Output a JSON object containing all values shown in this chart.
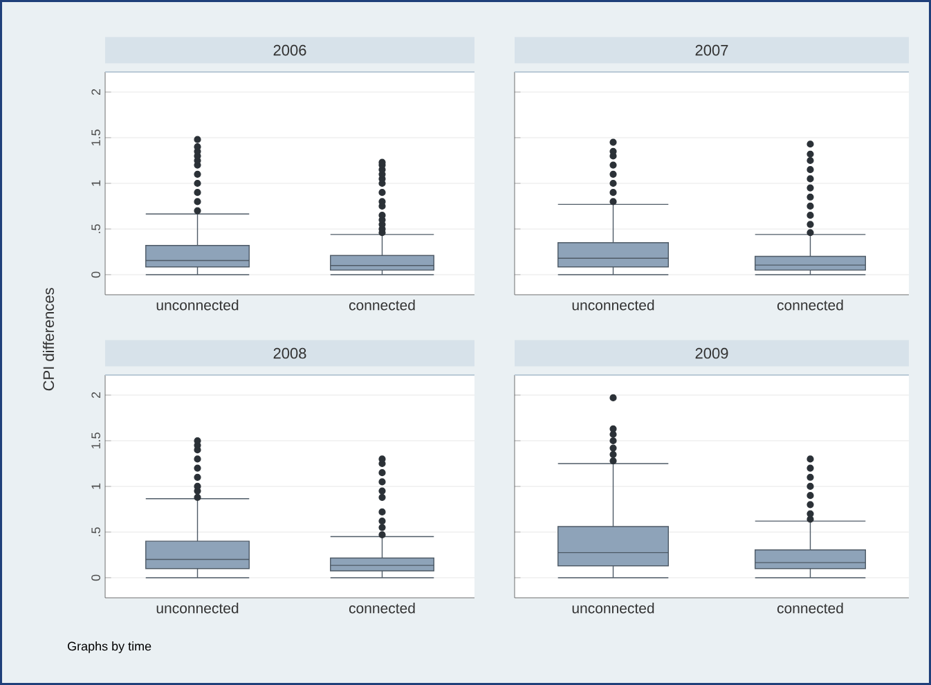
{
  "chart_data": [
    {
      "type": "box",
      "title": "2006",
      "ylabel": "CPI differences",
      "categories": [
        "unconnected",
        "connected"
      ],
      "ylim": [
        -0.22,
        2.22
      ],
      "yticks": [
        0,
        {
          "value": 0.5,
          "label": ".5"
        },
        1,
        1.5,
        2
      ],
      "grid": "y",
      "series": [
        {
          "color": "#8ea3b9",
          "boxes": [
            {
              "low": 0,
              "q1": 0.085,
              "median": 0.155,
              "q3": 0.32,
              "high": 0.665,
              "outliers": [
                0.7,
                0.8,
                0.9,
                1.0,
                1.1,
                1.2,
                1.25,
                1.3,
                1.35,
                1.4,
                1.48
              ]
            },
            {
              "low": 0,
              "q1": 0.05,
              "median": 0.1,
              "q3": 0.21,
              "high": 0.44,
              "outliers": [
                0.46,
                0.5,
                0.55,
                0.6,
                0.65,
                0.75,
                0.8,
                0.9,
                1.0,
                1.05,
                1.1,
                1.15,
                1.2,
                1.23
              ]
            }
          ]
        }
      ]
    },
    {
      "type": "box",
      "title": "2007",
      "categories": [
        "unconnected",
        "connected"
      ],
      "ylim": [
        -0.22,
        2.22
      ],
      "yticks": [
        0,
        0.5,
        1,
        1.5,
        2
      ],
      "grid": "y",
      "tick_labels": "x",
      "series": [
        {
          "color": "#8ea3b9",
          "boxes": [
            {
              "low": 0,
              "q1": 0.085,
              "median": 0.18,
              "q3": 0.35,
              "high": 0.77,
              "outliers": [
                0.8,
                0.9,
                1.0,
                1.1,
                1.2,
                1.3,
                1.35,
                1.45
              ]
            },
            {
              "low": 0,
              "q1": 0.05,
              "median": 0.105,
              "q3": 0.2,
              "high": 0.44,
              "outliers": [
                0.46,
                0.55,
                0.65,
                0.75,
                0.85,
                0.95,
                1.05,
                1.15,
                1.25,
                1.32,
                1.43
              ]
            }
          ]
        }
      ]
    },
    {
      "type": "box",
      "title": "2008",
      "categories": [
        "unconnected",
        "connected"
      ],
      "ylim": [
        -0.22,
        2.22
      ],
      "yticks": [
        0,
        {
          "value": 0.5,
          "label": ".5"
        },
        1,
        1.5,
        2
      ],
      "grid": "y",
      "annotations": [
        "Graphs by time"
      ],
      "series": [
        {
          "color": "#8ea3b9",
          "boxes": [
            {
              "low": 0,
              "q1": 0.1,
              "median": 0.2,
              "q3": 0.4,
              "high": 0.865,
              "outliers": [
                0.88,
                0.95,
                1.0,
                1.1,
                1.2,
                1.3,
                1.4,
                1.45,
                1.5
              ]
            },
            {
              "low": 0,
              "q1": 0.075,
              "median": 0.135,
              "q3": 0.215,
              "high": 0.45,
              "outliers": [
                0.47,
                0.55,
                0.62,
                0.72,
                0.88,
                0.95,
                1.05,
                1.15,
                1.25,
                1.3
              ]
            }
          ]
        }
      ]
    },
    {
      "type": "box",
      "title": "2009",
      "categories": [
        "unconnected",
        "connected"
      ],
      "ylim": [
        -0.22,
        2.22
      ],
      "yticks": [
        0,
        0.5,
        1,
        1.5,
        2
      ],
      "grid": "y",
      "tick_labels": "x",
      "series": [
        {
          "color": "#8ea3b9",
          "boxes": [
            {
              "low": 0,
              "q1": 0.13,
              "median": 0.275,
              "q3": 0.56,
              "high": 1.25,
              "outliers": [
                1.28,
                1.35,
                1.42,
                1.5,
                1.57,
                1.63,
                1.97
              ]
            },
            {
              "low": 0,
              "q1": 0.1,
              "median": 0.165,
              "q3": 0.305,
              "high": 0.62,
              "outliers": [
                0.64,
                0.7,
                0.8,
                0.9,
                1.0,
                1.1,
                1.2,
                1.3
              ]
            }
          ]
        }
      ]
    }
  ]
}
